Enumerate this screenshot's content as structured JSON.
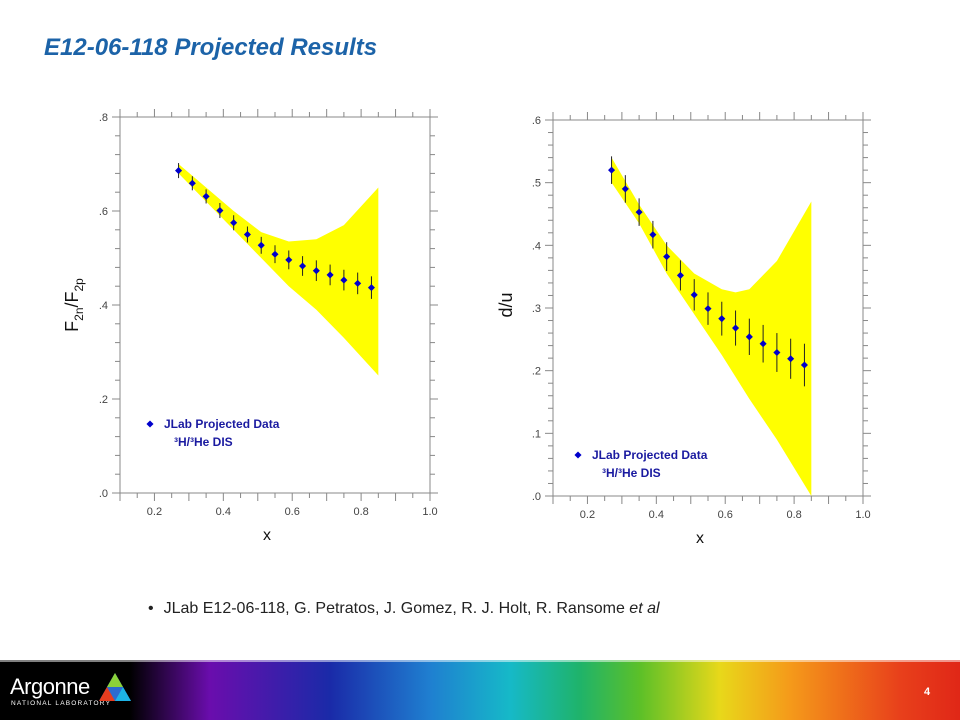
{
  "title": "E12-06-118 Projected Results",
  "citation": {
    "main": "JLab E12-06-118, G. Petratos, J. Gomez, R. J. Holt, R. Ransome",
    "italic": "et al"
  },
  "footer": {
    "logo_text": "Argonne",
    "logo_sub": "NATIONAL LABORATORY",
    "page_number": "4"
  },
  "colors": {
    "title": "#1c63a8",
    "band": "#ffff00",
    "points": "#0000cc"
  },
  "chart_data": [
    {
      "type": "scatter",
      "title": "",
      "xlabel": "x",
      "ylabel": "F2n/F2p",
      "xlim": [
        0.1,
        1.0
      ],
      "ylim": [
        0.0,
        0.8
      ],
      "xticks": [
        "0.2",
        "0.4",
        "0.6",
        "0.8",
        "1.0"
      ],
      "yticks": [
        ".0",
        ".2",
        ".4",
        ".6",
        ".8"
      ],
      "legend": {
        "marker_label": "JLab Projected Data",
        "subtitle": "³H/³He DIS"
      },
      "band": {
        "x": [
          0.27,
          0.35,
          0.43,
          0.51,
          0.59,
          0.67,
          0.75,
          0.85
        ],
        "upper": [
          0.7,
          0.65,
          0.6,
          0.555,
          0.535,
          0.54,
          0.57,
          0.65
        ],
        "lower": [
          0.68,
          0.62,
          0.56,
          0.5,
          0.44,
          0.39,
          0.33,
          0.25
        ]
      },
      "series": [
        {
          "x": [
            0.27,
            0.31,
            0.35,
            0.39,
            0.43,
            0.47,
            0.51,
            0.55,
            0.59,
            0.63,
            0.67,
            0.71,
            0.75,
            0.79,
            0.83
          ],
          "y": [
            0.686,
            0.659,
            0.631,
            0.601,
            0.575,
            0.55,
            0.527,
            0.508,
            0.496,
            0.483,
            0.473,
            0.464,
            0.453,
            0.446,
            0.437
          ],
          "err": [
            0.016,
            0.015,
            0.015,
            0.016,
            0.016,
            0.017,
            0.018,
            0.019,
            0.02,
            0.021,
            0.022,
            0.022,
            0.022,
            0.023,
            0.024
          ]
        }
      ]
    },
    {
      "type": "scatter",
      "title": "",
      "xlabel": "x",
      "ylabel": "d/u",
      "xlim": [
        0.1,
        1.0
      ],
      "ylim": [
        0.0,
        0.6
      ],
      "xticks": [
        "0.2",
        "0.4",
        "0.6",
        "0.8",
        "1.0"
      ],
      "yticks": [
        ".0",
        ".1",
        ".2",
        ".3",
        ".4",
        ".5",
        ".6"
      ],
      "legend": {
        "marker_label": "JLab Projected Data",
        "subtitle": "³H/³He DIS"
      },
      "band": {
        "x": [
          0.27,
          0.35,
          0.43,
          0.51,
          0.59,
          0.63,
          0.67,
          0.75,
          0.85
        ],
        "upper": [
          0.54,
          0.465,
          0.4,
          0.355,
          0.33,
          0.325,
          0.33,
          0.375,
          0.47
        ],
        "lower": [
          0.5,
          0.435,
          0.355,
          0.29,
          0.225,
          0.19,
          0.155,
          0.09,
          0.0
        ]
      },
      "series": [
        {
          "x": [
            0.27,
            0.31,
            0.35,
            0.39,
            0.43,
            0.47,
            0.51,
            0.55,
            0.59,
            0.63,
            0.67,
            0.71,
            0.75,
            0.79,
            0.83
          ],
          "y": [
            0.52,
            0.49,
            0.453,
            0.417,
            0.382,
            0.352,
            0.321,
            0.299,
            0.283,
            0.268,
            0.254,
            0.243,
            0.229,
            0.219,
            0.209
          ],
          "err": [
            0.022,
            0.022,
            0.022,
            0.022,
            0.023,
            0.024,
            0.025,
            0.026,
            0.027,
            0.028,
            0.029,
            0.03,
            0.031,
            0.032,
            0.034
          ]
        }
      ]
    }
  ]
}
